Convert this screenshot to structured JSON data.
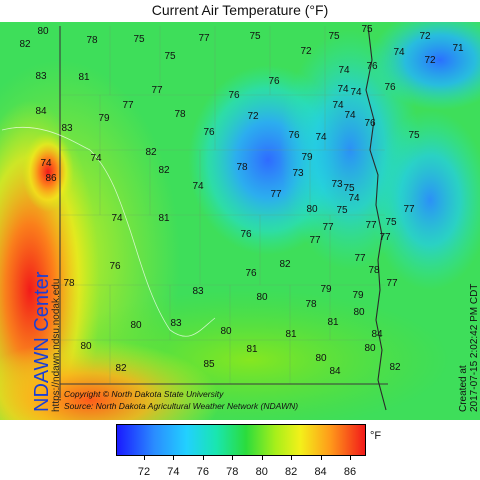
{
  "title": "Current Air Temperature (°F)",
  "side_left": {
    "center": "NDAWN Center",
    "url": "https://ndawn.ndsu.nodak.edu"
  },
  "side_right": {
    "created": "Created at",
    "timestamp": "2017-07-15 2:02:42 PM CDT"
  },
  "credits": {
    "copyright": "Copyright © North Dakota State University",
    "source": "Source: North Dakota Agricultural Weather Network (NDAWN)"
  },
  "colorbar": {
    "unit": "°F",
    "ticks": [
      "72",
      "74",
      "76",
      "78",
      "80",
      "82",
      "84",
      "86"
    ]
  },
  "colors": {
    "cool": "#1a6dff",
    "mid": "#2bdc3c",
    "warm": "#f21a1a"
  },
  "stations": [
    {
      "t": "82"
    },
    {
      "t": "80"
    },
    {
      "t": "78"
    },
    {
      "t": "75"
    },
    {
      "t": "75"
    },
    {
      "t": "77"
    },
    {
      "t": "75"
    },
    {
      "t": "72"
    },
    {
      "t": "75"
    },
    {
      "t": "75"
    },
    {
      "t": "72"
    },
    {
      "t": "74"
    },
    {
      "t": "72"
    },
    {
      "t": "71"
    },
    {
      "t": "83"
    },
    {
      "t": "81"
    },
    {
      "t": "76"
    },
    {
      "t": "74"
    },
    {
      "t": "76"
    },
    {
      "t": "77"
    },
    {
      "t": "76"
    },
    {
      "t": "74"
    },
    {
      "t": "76"
    },
    {
      "t": "84"
    },
    {
      "t": "77"
    },
    {
      "t": "79"
    },
    {
      "t": "78"
    },
    {
      "t": "72"
    },
    {
      "t": "74"
    },
    {
      "t": "74"
    },
    {
      "t": "83"
    },
    {
      "t": "76"
    },
    {
      "t": "76"
    },
    {
      "t": "74"
    },
    {
      "t": "75"
    },
    {
      "t": "74"
    },
    {
      "t": "82"
    },
    {
      "t": "79"
    },
    {
      "t": "76"
    },
    {
      "t": "74"
    },
    {
      "t": "86"
    },
    {
      "t": "82"
    },
    {
      "t": "78"
    },
    {
      "t": "74"
    },
    {
      "t": "74"
    },
    {
      "t": "77"
    },
    {
      "t": "73"
    },
    {
      "t": "73"
    },
    {
      "t": "75"
    },
    {
      "t": "74"
    },
    {
      "t": "81"
    },
    {
      "t": "80"
    },
    {
      "t": "75"
    },
    {
      "t": "74"
    },
    {
      "t": "77"
    },
    {
      "t": "75"
    },
    {
      "t": "76"
    },
    {
      "t": "77"
    },
    {
      "t": "77"
    },
    {
      "t": "77"
    },
    {
      "t": "76"
    },
    {
      "t": "82"
    },
    {
      "t": "77"
    },
    {
      "t": "77"
    },
    {
      "t": "76"
    },
    {
      "t": "78"
    },
    {
      "t": "77"
    },
    {
      "t": "78"
    },
    {
      "t": "83"
    },
    {
      "t": "80"
    },
    {
      "t": "78"
    },
    {
      "t": "79"
    },
    {
      "t": "79"
    },
    {
      "t": "80"
    },
    {
      "t": "80"
    },
    {
      "t": "83"
    },
    {
      "t": "80"
    },
    {
      "t": "81"
    },
    {
      "t": "81"
    },
    {
      "t": "81"
    },
    {
      "t": "80"
    },
    {
      "t": "84"
    },
    {
      "t": "80"
    },
    {
      "t": "80"
    },
    {
      "t": "82"
    },
    {
      "t": "85"
    },
    {
      "t": "84"
    },
    {
      "t": "82"
    },
    {
      "t": "81"
    }
  ]
}
